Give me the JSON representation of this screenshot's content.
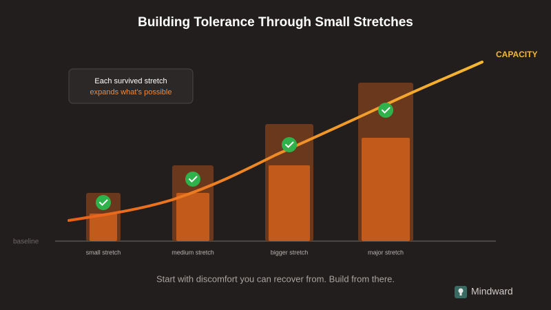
{
  "header": {
    "title": "Building Tolerance Through Small Stretches"
  },
  "curve": {
    "label": "CAPACITY"
  },
  "callout": {
    "line1": "Each survived stretch",
    "line2": "expands what's possible"
  },
  "axis": {
    "baseline": "baseline"
  },
  "stages": [
    {
      "label": "small stretch"
    },
    {
      "label": "medium stretch"
    },
    {
      "label": "bigger stretch"
    },
    {
      "label": "major stretch"
    }
  ],
  "footer": {
    "caption": "Start with discomfort you can recover from. Build from there.",
    "brand": "Mindward"
  }
}
